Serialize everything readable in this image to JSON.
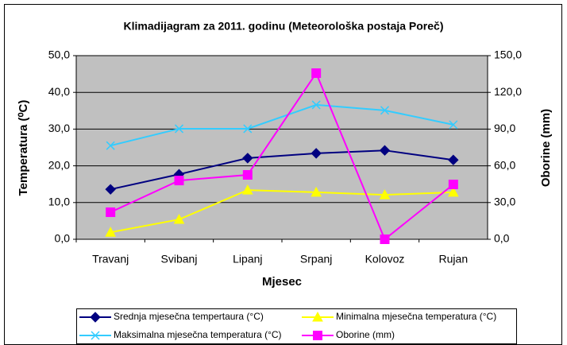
{
  "chart_data": {
    "type": "line",
    "title": "Klimadijagram za 2011. godinu (Meteorološka postaja Poreč)",
    "x_label": "Mjesec",
    "y_label": "Temperatura (⁰C)",
    "y2_label": "Oborine (mm)",
    "categories": [
      "Travanj",
      "Svibanj",
      "Lipanj",
      "Srpanj",
      "Kolovoz",
      "Rujan"
    ],
    "series": [
      {
        "name": "Srednja mjesečna tempertaura (°C)",
        "color": "#000080",
        "marker": "diamond",
        "values": [
          13.6,
          17.7,
          22.1,
          23.4,
          24.2,
          21.6
        ]
      },
      {
        "name": "Minimalna mjesečna temperatura (°C)",
        "color": "#ffff00",
        "marker": "triangle",
        "values": [
          1.9,
          5.4,
          13.4,
          12.8,
          12.1,
          12.8
        ]
      },
      {
        "name": "Maksimalna mjesečna temperatura (°C)",
        "color": "#33ccff",
        "marker": "x",
        "values": [
          25.5,
          30.1,
          30.1,
          36.6,
          35.1,
          31.2
        ]
      },
      {
        "name": "Oborine (mm)",
        "color": "#ff00ff",
        "marker": "square",
        "axis": "y2",
        "values": [
          22.1,
          48.0,
          52.6,
          135.7,
          0.0,
          44.8
        ]
      }
    ],
    "ylim": [
      0,
      50
    ],
    "yticks": [
      {
        "value": 0,
        "label": "0,0"
      },
      {
        "value": 10,
        "label": "10,0"
      },
      {
        "value": 20,
        "label": "20,0"
      },
      {
        "value": 30,
        "label": "30,0"
      },
      {
        "value": 40,
        "label": "40,0"
      },
      {
        "value": 50,
        "label": "50,0"
      }
    ],
    "y2lim": [
      0,
      150
    ],
    "y2ticks": [
      {
        "value": 0,
        "label": "0,0"
      },
      {
        "value": 30,
        "label": "30,0"
      },
      {
        "value": 60,
        "label": "60,0"
      },
      {
        "value": 90,
        "label": "90,0"
      },
      {
        "value": 120,
        "label": "120,0"
      },
      {
        "value": 150,
        "label": "150,0"
      }
    ],
    "grid": true,
    "legend": "bottom"
  }
}
